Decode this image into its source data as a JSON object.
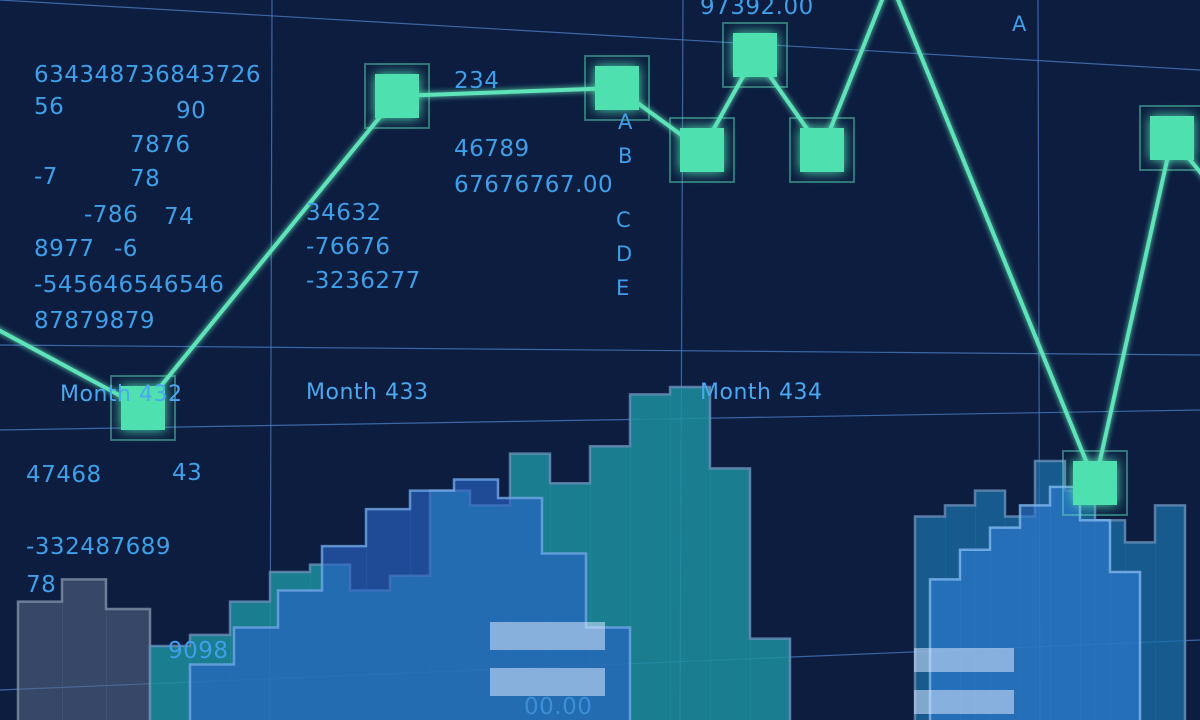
{
  "colors": {
    "background": "#0c1d40",
    "grid": "#4a7fc8",
    "line": "#5fe3b8",
    "marker_fill": "#4fe0b0",
    "text": "#3f9fe8",
    "bars_teal": "#1d8f9f",
    "bars_blue": "#2a63c4",
    "bars_gray": "#5a6a86"
  },
  "numbers": {
    "n1": "634348736843726",
    "n2": "56",
    "n3": "90",
    "n4": "7876",
    "n5": "-7",
    "n6": "78",
    "n7": "-786",
    "n8": "74",
    "n9": "8977",
    "n10": "-6",
    "n11": "-545646546546",
    "n12": "87879879",
    "n13": "234",
    "n14": "46789",
    "n15": "67676767.00",
    "n16": "34632",
    "n17": "-76676",
    "n18": "-3236277",
    "n19": "97392.00",
    "n20": "47468",
    "n21": "43",
    "n22": "-332487689",
    "n23": "78",
    "n24": "9098",
    "n25": "00.00"
  },
  "letters": {
    "a_top": "A",
    "a": "A",
    "b": "B",
    "c": "C",
    "d": "D",
    "e": "E"
  },
  "chart_data": {
    "type": "line",
    "x_tick_labels": [
      "Month 432",
      "Month 433",
      "Month 434"
    ],
    "grid": true,
    "line_series": {
      "markers": "square",
      "values": [
        0.56,
        0.71,
        0.98,
        0.83,
        0.83,
        0.81,
        0.89,
        0.81,
        0.73,
        0.65,
        0.79
      ]
    },
    "histogram_layers": [
      {
        "color": "teal",
        "values": [
          0.2,
          0.23,
          0.32,
          0.4,
          0.42,
          0.35,
          0.39,
          0.62,
          0.58,
          0.72,
          0.64,
          0.74,
          0.88,
          0.9,
          0.68,
          0.22
        ]
      },
      {
        "color": "blue",
        "values": [
          0.15,
          0.25,
          0.35,
          0.47,
          0.57,
          0.62,
          0.65,
          0.6,
          0.45,
          0.25
        ]
      },
      {
        "color": "gray",
        "values": [
          0.32,
          0.38,
          0.3
        ]
      },
      {
        "color": "right-teal",
        "values": [
          0.55,
          0.58,
          0.62,
          0.55,
          0.7,
          0.62,
          0.54,
          0.48,
          0.58
        ]
      },
      {
        "color": "right-blue",
        "values": [
          0.38,
          0.46,
          0.52,
          0.58,
          0.63,
          0.54,
          0.4
        ]
      }
    ]
  }
}
